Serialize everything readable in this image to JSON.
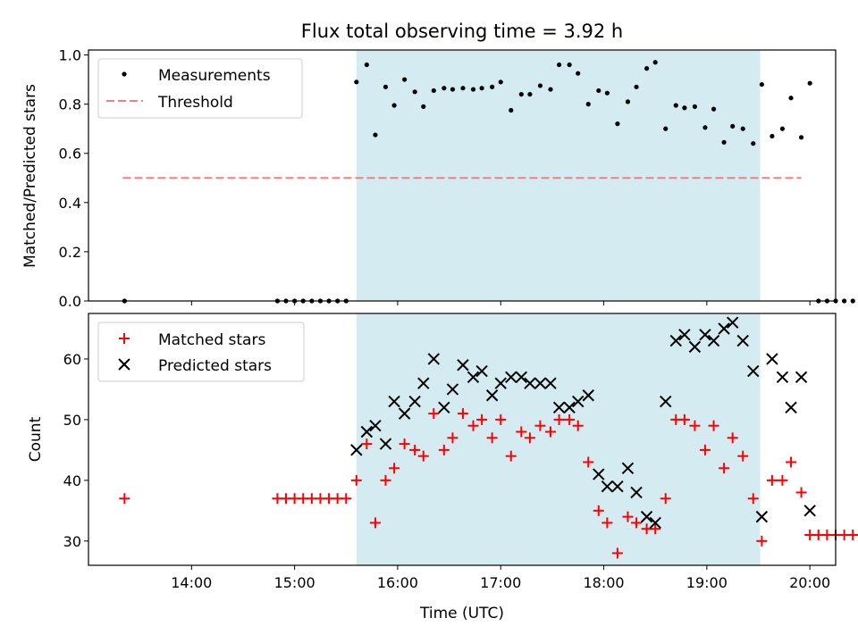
{
  "chart_data": {
    "title": "Flux total observing time = 3.92 h",
    "xlabel": "Time (UTC)",
    "x_type": "time",
    "x_range_hours": [
      13.0,
      20.25
    ],
    "x_ticks": [
      "14:00",
      "15:00",
      "16:00",
      "17:00",
      "18:00",
      "19:00",
      "20:00"
    ],
    "observing_window": {
      "start": "15:36",
      "end": "19:31",
      "color": "#d4ebf2"
    },
    "top": {
      "type": "scatter",
      "ylabel": "Matched/Predicted stars",
      "ylim": [
        0,
        1.02
      ],
      "yticks": [
        "0.0",
        "0.2",
        "0.4",
        "0.6",
        "0.8",
        "1.0"
      ],
      "legend_position": "top-left",
      "threshold": {
        "name": "Threshold",
        "value": 0.5,
        "x_start": "13:20",
        "x_end": "19:55",
        "color": "#f08080",
        "style": "dashed"
      },
      "measurements": {
        "name": "Measurements",
        "color": "#000000",
        "points": [
          [
            "13:21",
            0.0
          ],
          [
            "14:50",
            0.0
          ],
          [
            "14:55",
            0.0
          ],
          [
            "15:00",
            0.0
          ],
          [
            "15:05",
            0.0
          ],
          [
            "15:10",
            0.0
          ],
          [
            "15:15",
            0.0
          ],
          [
            "15:20",
            0.0
          ],
          [
            "15:25",
            0.0
          ],
          [
            "15:30",
            0.0
          ],
          [
            "15:36",
            0.89
          ],
          [
            "15:42",
            0.96
          ],
          [
            "15:47",
            0.675
          ],
          [
            "15:53",
            0.87
          ],
          [
            "15:58",
            0.795
          ],
          [
            "16:04",
            0.9
          ],
          [
            "16:10",
            0.85
          ],
          [
            "16:15",
            0.79
          ],
          [
            "16:21",
            0.855
          ],
          [
            "16:27",
            0.865
          ],
          [
            "16:32",
            0.86
          ],
          [
            "16:38",
            0.865
          ],
          [
            "16:44",
            0.86
          ],
          [
            "16:49",
            0.865
          ],
          [
            "16:55",
            0.87
          ],
          [
            "17:00",
            0.89
          ],
          [
            "17:06",
            0.775
          ],
          [
            "17:12",
            0.84
          ],
          [
            "17:17",
            0.84
          ],
          [
            "17:23",
            0.875
          ],
          [
            "17:29",
            0.86
          ],
          [
            "17:34",
            0.96
          ],
          [
            "17:40",
            0.96
          ],
          [
            "17:45",
            0.925
          ],
          [
            "17:51",
            0.8
          ],
          [
            "17:57",
            0.855
          ],
          [
            "18:02",
            0.845
          ],
          [
            "18:08",
            0.72
          ],
          [
            "18:14",
            0.81
          ],
          [
            "18:19",
            0.87
          ],
          [
            "18:25",
            0.945
          ],
          [
            "18:30",
            0.97
          ],
          [
            "18:36",
            0.7
          ],
          [
            "18:42",
            0.795
          ],
          [
            "18:47",
            0.785
          ],
          [
            "18:53",
            0.79
          ],
          [
            "18:59",
            0.705
          ],
          [
            "19:04",
            0.78
          ],
          [
            "19:10",
            0.645
          ],
          [
            "19:15",
            0.71
          ],
          [
            "19:21",
            0.7
          ],
          [
            "19:27",
            0.64
          ],
          [
            "19:32",
            0.88
          ],
          [
            "19:38",
            0.67
          ],
          [
            "19:44",
            0.7
          ],
          [
            "19:49",
            0.825
          ],
          [
            "19:55",
            0.665
          ],
          [
            "20:00",
            0.885
          ],
          [
            "20:05",
            0.0
          ],
          [
            "20:10",
            0.0
          ],
          [
            "20:15",
            0.0
          ],
          [
            "20:20",
            0.0
          ],
          [
            "20:25",
            0.0
          ]
        ]
      }
    },
    "bottom": {
      "type": "scatter",
      "ylabel": "Count",
      "ylim": [
        26,
        67.5
      ],
      "yticks": [
        "30",
        "40",
        "50",
        "60"
      ],
      "legend_position": "top-left",
      "matched": {
        "name": "Matched stars",
        "color": "#ff0000",
        "marker": "plus",
        "points": [
          [
            "13:21",
            37
          ],
          [
            "14:50",
            37
          ],
          [
            "14:55",
            37
          ],
          [
            "15:00",
            37
          ],
          [
            "15:05",
            37
          ],
          [
            "15:10",
            37
          ],
          [
            "15:15",
            37
          ],
          [
            "15:20",
            37
          ],
          [
            "15:25",
            37
          ],
          [
            "15:30",
            37
          ],
          [
            "15:36",
            40
          ],
          [
            "15:42",
            46
          ],
          [
            "15:47",
            33
          ],
          [
            "15:53",
            40
          ],
          [
            "15:58",
            42
          ],
          [
            "16:04",
            46
          ],
          [
            "16:10",
            45
          ],
          [
            "16:15",
            44
          ],
          [
            "16:21",
            51
          ],
          [
            "16:27",
            45
          ],
          [
            "16:32",
            47
          ],
          [
            "16:38",
            51
          ],
          [
            "16:44",
            49
          ],
          [
            "16:49",
            50
          ],
          [
            "16:55",
            47
          ],
          [
            "17:00",
            50
          ],
          [
            "17:06",
            44
          ],
          [
            "17:12",
            48
          ],
          [
            "17:17",
            47
          ],
          [
            "17:23",
            49
          ],
          [
            "17:29",
            48
          ],
          [
            "17:34",
            50
          ],
          [
            "17:40",
            50
          ],
          [
            "17:45",
            49
          ],
          [
            "17:51",
            43
          ],
          [
            "17:57",
            35
          ],
          [
            "18:02",
            33
          ],
          [
            "18:08",
            28
          ],
          [
            "18:14",
            34
          ],
          [
            "18:19",
            33
          ],
          [
            "18:25",
            32
          ],
          [
            "18:30",
            32
          ],
          [
            "18:36",
            37
          ],
          [
            "18:42",
            50
          ],
          [
            "18:47",
            50
          ],
          [
            "18:53",
            49
          ],
          [
            "18:59",
            45
          ],
          [
            "19:04",
            49
          ],
          [
            "19:10",
            42
          ],
          [
            "19:15",
            47
          ],
          [
            "19:21",
            44
          ],
          [
            "19:27",
            37
          ],
          [
            "19:32",
            30
          ],
          [
            "19:38",
            40
          ],
          [
            "19:44",
            40
          ],
          [
            "19:49",
            43
          ],
          [
            "19:55",
            38
          ],
          [
            "20:00",
            31
          ],
          [
            "20:05",
            31
          ],
          [
            "20:10",
            31
          ],
          [
            "20:15",
            31
          ],
          [
            "20:20",
            31
          ],
          [
            "20:25",
            31
          ]
        ]
      },
      "predicted": {
        "name": "Predicted stars",
        "color": "#000000",
        "marker": "x",
        "points": [
          [
            "15:36",
            45
          ],
          [
            "15:42",
            48
          ],
          [
            "15:47",
            49
          ],
          [
            "15:53",
            46
          ],
          [
            "15:58",
            53
          ],
          [
            "16:04",
            51
          ],
          [
            "16:10",
            53
          ],
          [
            "16:15",
            56
          ],
          [
            "16:21",
            60
          ],
          [
            "16:27",
            52
          ],
          [
            "16:32",
            55
          ],
          [
            "16:38",
            59
          ],
          [
            "16:44",
            57
          ],
          [
            "16:49",
            58
          ],
          [
            "16:55",
            54
          ],
          [
            "17:00",
            56
          ],
          [
            "17:06",
            57
          ],
          [
            "17:12",
            57
          ],
          [
            "17:17",
            56
          ],
          [
            "17:23",
            56
          ],
          [
            "17:29",
            56
          ],
          [
            "17:34",
            52
          ],
          [
            "17:40",
            52
          ],
          [
            "17:45",
            53
          ],
          [
            "17:51",
            54
          ],
          [
            "17:57",
            41
          ],
          [
            "18:02",
            39
          ],
          [
            "18:08",
            39
          ],
          [
            "18:14",
            42
          ],
          [
            "18:19",
            38
          ],
          [
            "18:25",
            34
          ],
          [
            "18:30",
            33
          ],
          [
            "18:36",
            53
          ],
          [
            "18:42",
            63
          ],
          [
            "18:47",
            64
          ],
          [
            "18:53",
            62
          ],
          [
            "18:59",
            64
          ],
          [
            "19:04",
            63
          ],
          [
            "19:10",
            65
          ],
          [
            "19:15",
            66
          ],
          [
            "19:21",
            63
          ],
          [
            "19:27",
            58
          ],
          [
            "19:32",
            34
          ],
          [
            "19:38",
            60
          ],
          [
            "19:44",
            57
          ],
          [
            "19:49",
            52
          ],
          [
            "19:55",
            57
          ],
          [
            "20:00",
            35
          ]
        ]
      }
    }
  }
}
